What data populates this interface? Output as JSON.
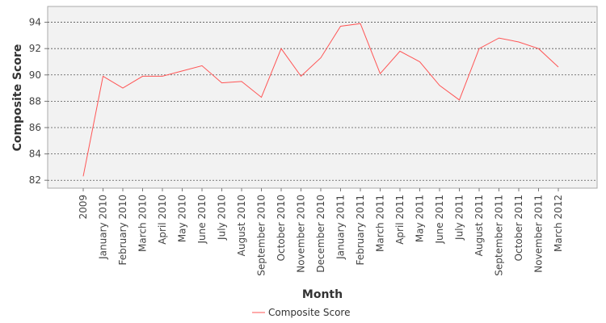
{
  "chart_data": {
    "type": "line",
    "title": "",
    "xlabel": "Month",
    "ylabel": "Composite Score",
    "categories": [
      "2009",
      "January 2010",
      "February 2010",
      "March 2010",
      "April 2010",
      "May 2010",
      "June 2010",
      "July 2010",
      "August 2010",
      "September 2010",
      "October 2010",
      "November 2010",
      "December 2010",
      "January 2011",
      "February 2011",
      "March 2011",
      "April 2011",
      "May 2011",
      "June 2011",
      "July 2011",
      "August 2011",
      "September 2011",
      "October 2011",
      "November 2011",
      "March 2012"
    ],
    "series": [
      {
        "name": "Composite Score",
        "color": "#ff5555",
        "values": [
          82.3,
          89.9,
          89.0,
          89.9,
          89.9,
          90.3,
          90.7,
          89.4,
          89.5,
          88.3,
          92.0,
          89.9,
          91.3,
          93.7,
          93.9,
          90.1,
          91.8,
          91.0,
          89.2,
          88.1,
          92.0,
          92.8,
          92.5,
          92.0,
          90.6
        ]
      }
    ],
    "ylim": [
      81.4,
      95.2
    ],
    "yticks": [
      82,
      84,
      86,
      88,
      90,
      92,
      94
    ],
    "grid": true,
    "legend": "bottom-center",
    "plot_background": "#f2f2f2",
    "grid_color": "#555555"
  }
}
